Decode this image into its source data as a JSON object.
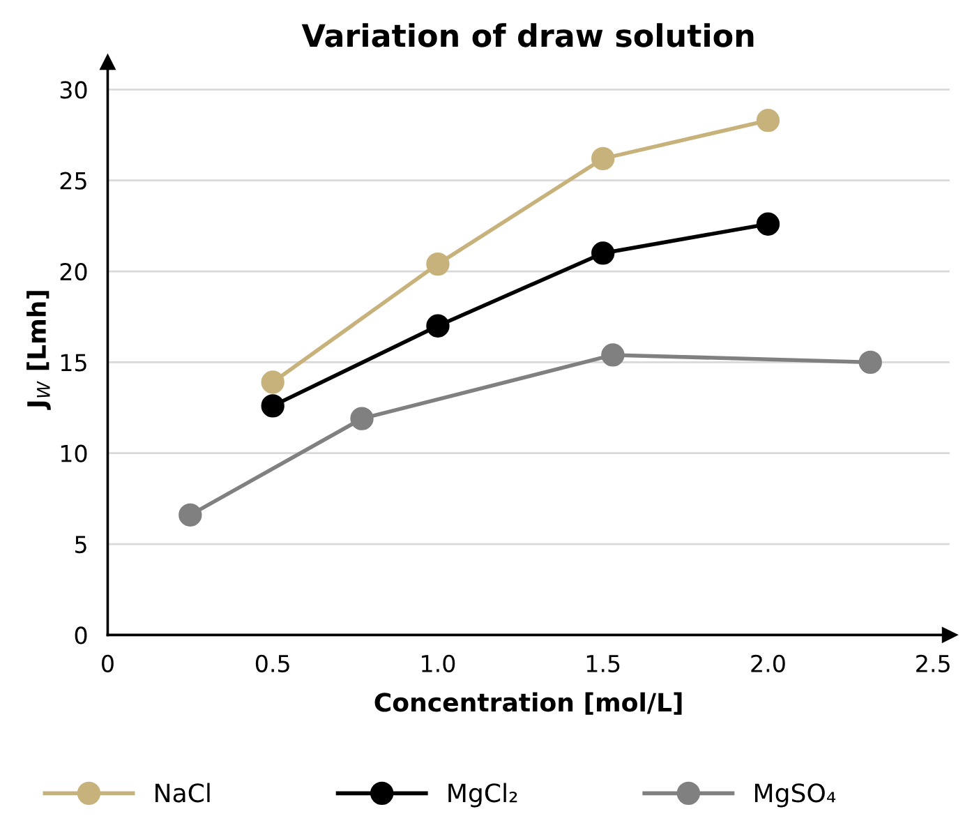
{
  "chart_data": {
    "type": "line",
    "title": "Variation of draw solution",
    "xlabel": "Concentration [mol/L]",
    "ylabel": "J$_{W}$ [Lmh]",
    "xlim": [
      0,
      2.55
    ],
    "ylim": [
      0,
      31.5
    ],
    "xticks": [
      0,
      0.5,
      {
        "value": 1,
        "label": "1.0"
      },
      1.5,
      {
        "value": 2,
        "label": "2.0"
      },
      2.5
    ],
    "yticks": [
      0,
      5,
      10,
      15,
      20,
      25,
      30
    ],
    "grid": "y",
    "legend": "bottom",
    "marker": "circle",
    "line_style": "solid",
    "series": [
      {
        "name": "NaCl",
        "color": "#c8b27c",
        "x": [
          0.5,
          1.0,
          1.5,
          2.0
        ],
        "values": [
          13.9,
          20.4,
          26.2,
          28.3
        ]
      },
      {
        "name": "MgCl₂",
        "color": "#000000",
        "x": [
          0.5,
          1.0,
          1.5,
          2.0
        ],
        "values": [
          12.6,
          17.0,
          21.0,
          22.6
        ]
      },
      {
        "name": "MgSO₄",
        "color": "#808080",
        "x": [
          0.25,
          0.77,
          1.53,
          2.31
        ],
        "values": [
          6.6,
          11.9,
          15.4,
          15.0
        ]
      }
    ]
  }
}
